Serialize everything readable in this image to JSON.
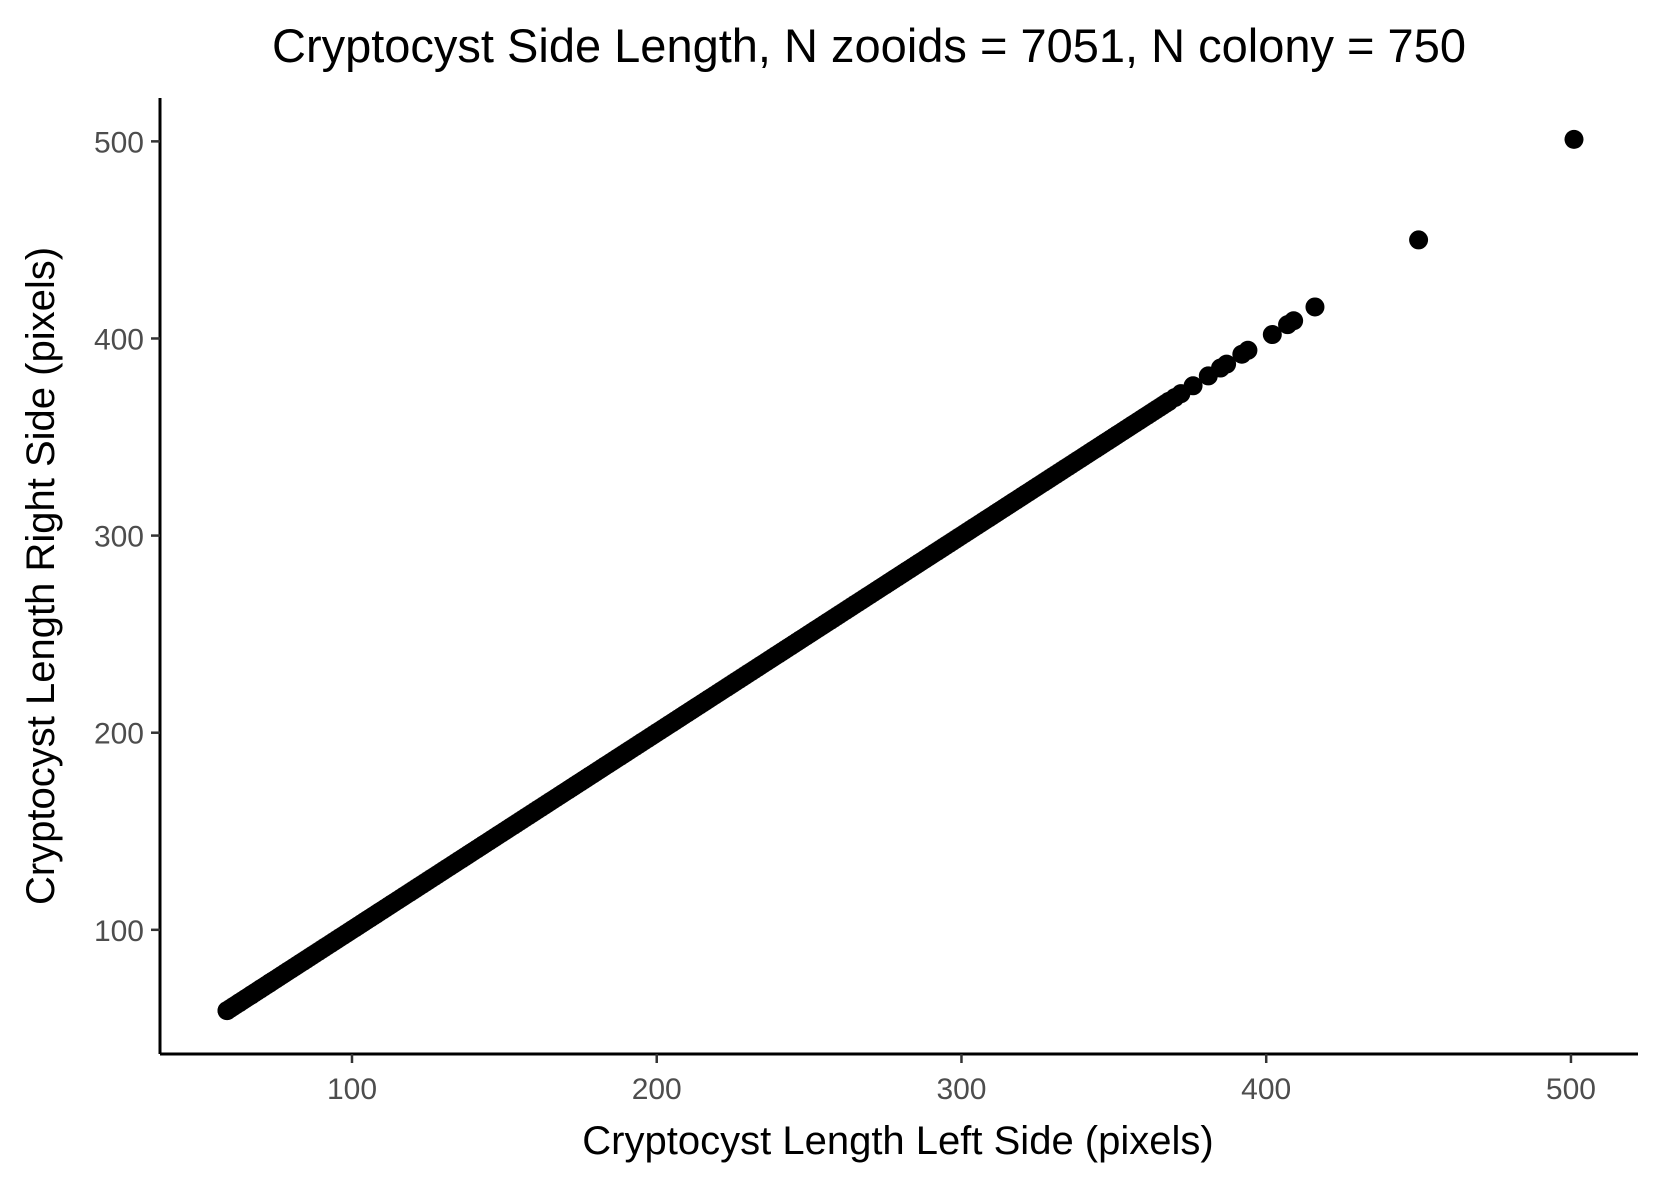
{
  "chart_data": {
    "type": "scatter",
    "title": "Cryptocyst Side Length, N zooids = 7051, N colony = 750",
    "xlabel": "Cryptocyst Length Left Side (pixels)",
    "ylabel": "Cryptocyst Length Right Side (pixels)",
    "xlim": [
      37,
      522
    ],
    "ylim": [
      37,
      522
    ],
    "xticks": [
      100,
      200,
      300,
      400,
      500
    ],
    "yticks": [
      100,
      200,
      300,
      400,
      500
    ],
    "xtick_labels": [
      "100",
      "200",
      "300",
      "400",
      "500"
    ],
    "ytick_labels": [
      "100",
      "200",
      "300",
      "400",
      "500"
    ],
    "grid": false,
    "legend": "none",
    "point_color": "#000000",
    "dense_line": {
      "from": 59,
      "to": 368,
      "step": 1
    },
    "points": [
      [
        59,
        59
      ],
      [
        63,
        63
      ],
      [
        67,
        67
      ],
      [
        70,
        70
      ],
      [
        73,
        73
      ],
      [
        368,
        368
      ],
      [
        370,
        370
      ],
      [
        372,
        372
      ],
      [
        376,
        376
      ],
      [
        381,
        381
      ],
      [
        385,
        385
      ],
      [
        387,
        387
      ],
      [
        392,
        392
      ],
      [
        394,
        394
      ],
      [
        402,
        402
      ],
      [
        407,
        407
      ],
      [
        409,
        409
      ],
      [
        416,
        416
      ],
      [
        450,
        450
      ],
      [
        501,
        501
      ]
    ]
  }
}
